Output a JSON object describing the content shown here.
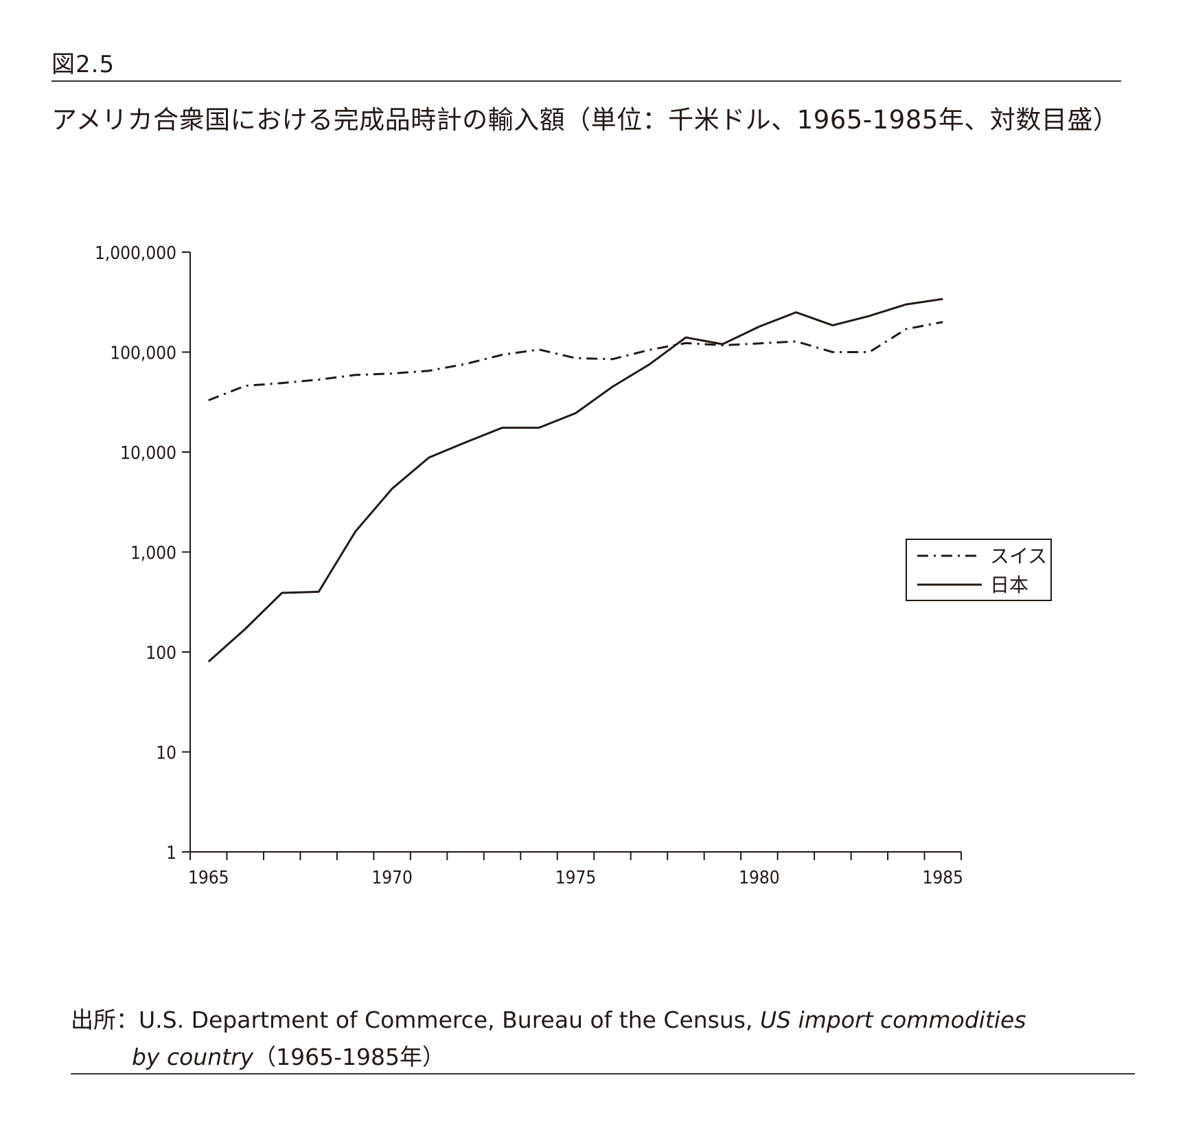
{
  "figure": {
    "label": "図2.5",
    "title": "アメリカ合衆国における完成品時計の輸入額（単位：千米ドル、1965-1985年、対数目盛）"
  },
  "source": {
    "prefix": "出所：",
    "text_plain": "U.S. Department of Commerce, Bureau of the Census, ",
    "text_italic_1": "US import commodities",
    "text_italic_2": "by country",
    "text_suffix": "（1965-1985年）"
  },
  "chart_data": {
    "type": "line",
    "title": "アメリカ合衆国における完成品時計の輸入額（単位：千米ドル、1965-1985年、対数目盛）",
    "xlabel": "",
    "ylabel": "",
    "yscale": "log",
    "ylim": [
      1,
      1000000
    ],
    "xlim": [
      1964.5,
      1985.5
    ],
    "grid": false,
    "legend_position": "right-middle",
    "y_ticks": [
      1,
      10,
      100,
      1000,
      10000,
      100000,
      1000000
    ],
    "y_tick_labels": [
      "1",
      "10",
      "100",
      "1,000",
      "10,000",
      "100,000",
      "1,000,000"
    ],
    "x_tick_labels": [
      "1965",
      "1970",
      "1975",
      "1980",
      "1985"
    ],
    "x_tick_label_years": [
      1965,
      1970,
      1975,
      1980,
      1985
    ],
    "x": [
      1965,
      1966,
      1967,
      1968,
      1969,
      1970,
      1971,
      1972,
      1973,
      1974,
      1975,
      1976,
      1977,
      1978,
      1979,
      1980,
      1981,
      1982,
      1983,
      1984,
      1985
    ],
    "series": [
      {
        "name": "スイス",
        "line_style": "dash-dot",
        "color": "#231815",
        "values": [
          33000,
          46000,
          49000,
          53000,
          59000,
          61000,
          65000,
          76000,
          94000,
          106000,
          87000,
          85000,
          105000,
          123000,
          117000,
          122000,
          128000,
          100000,
          100000,
          170000,
          200000
        ]
      },
      {
        "name": "日本",
        "line_style": "solid",
        "color": "#231815",
        "values": [
          80,
          170,
          390,
          400,
          1600,
          4300,
          8800,
          12500,
          17500,
          17500,
          24500,
          45000,
          75000,
          140000,
          120000,
          180000,
          250000,
          185000,
          230000,
          300000,
          340000
        ]
      }
    ]
  }
}
